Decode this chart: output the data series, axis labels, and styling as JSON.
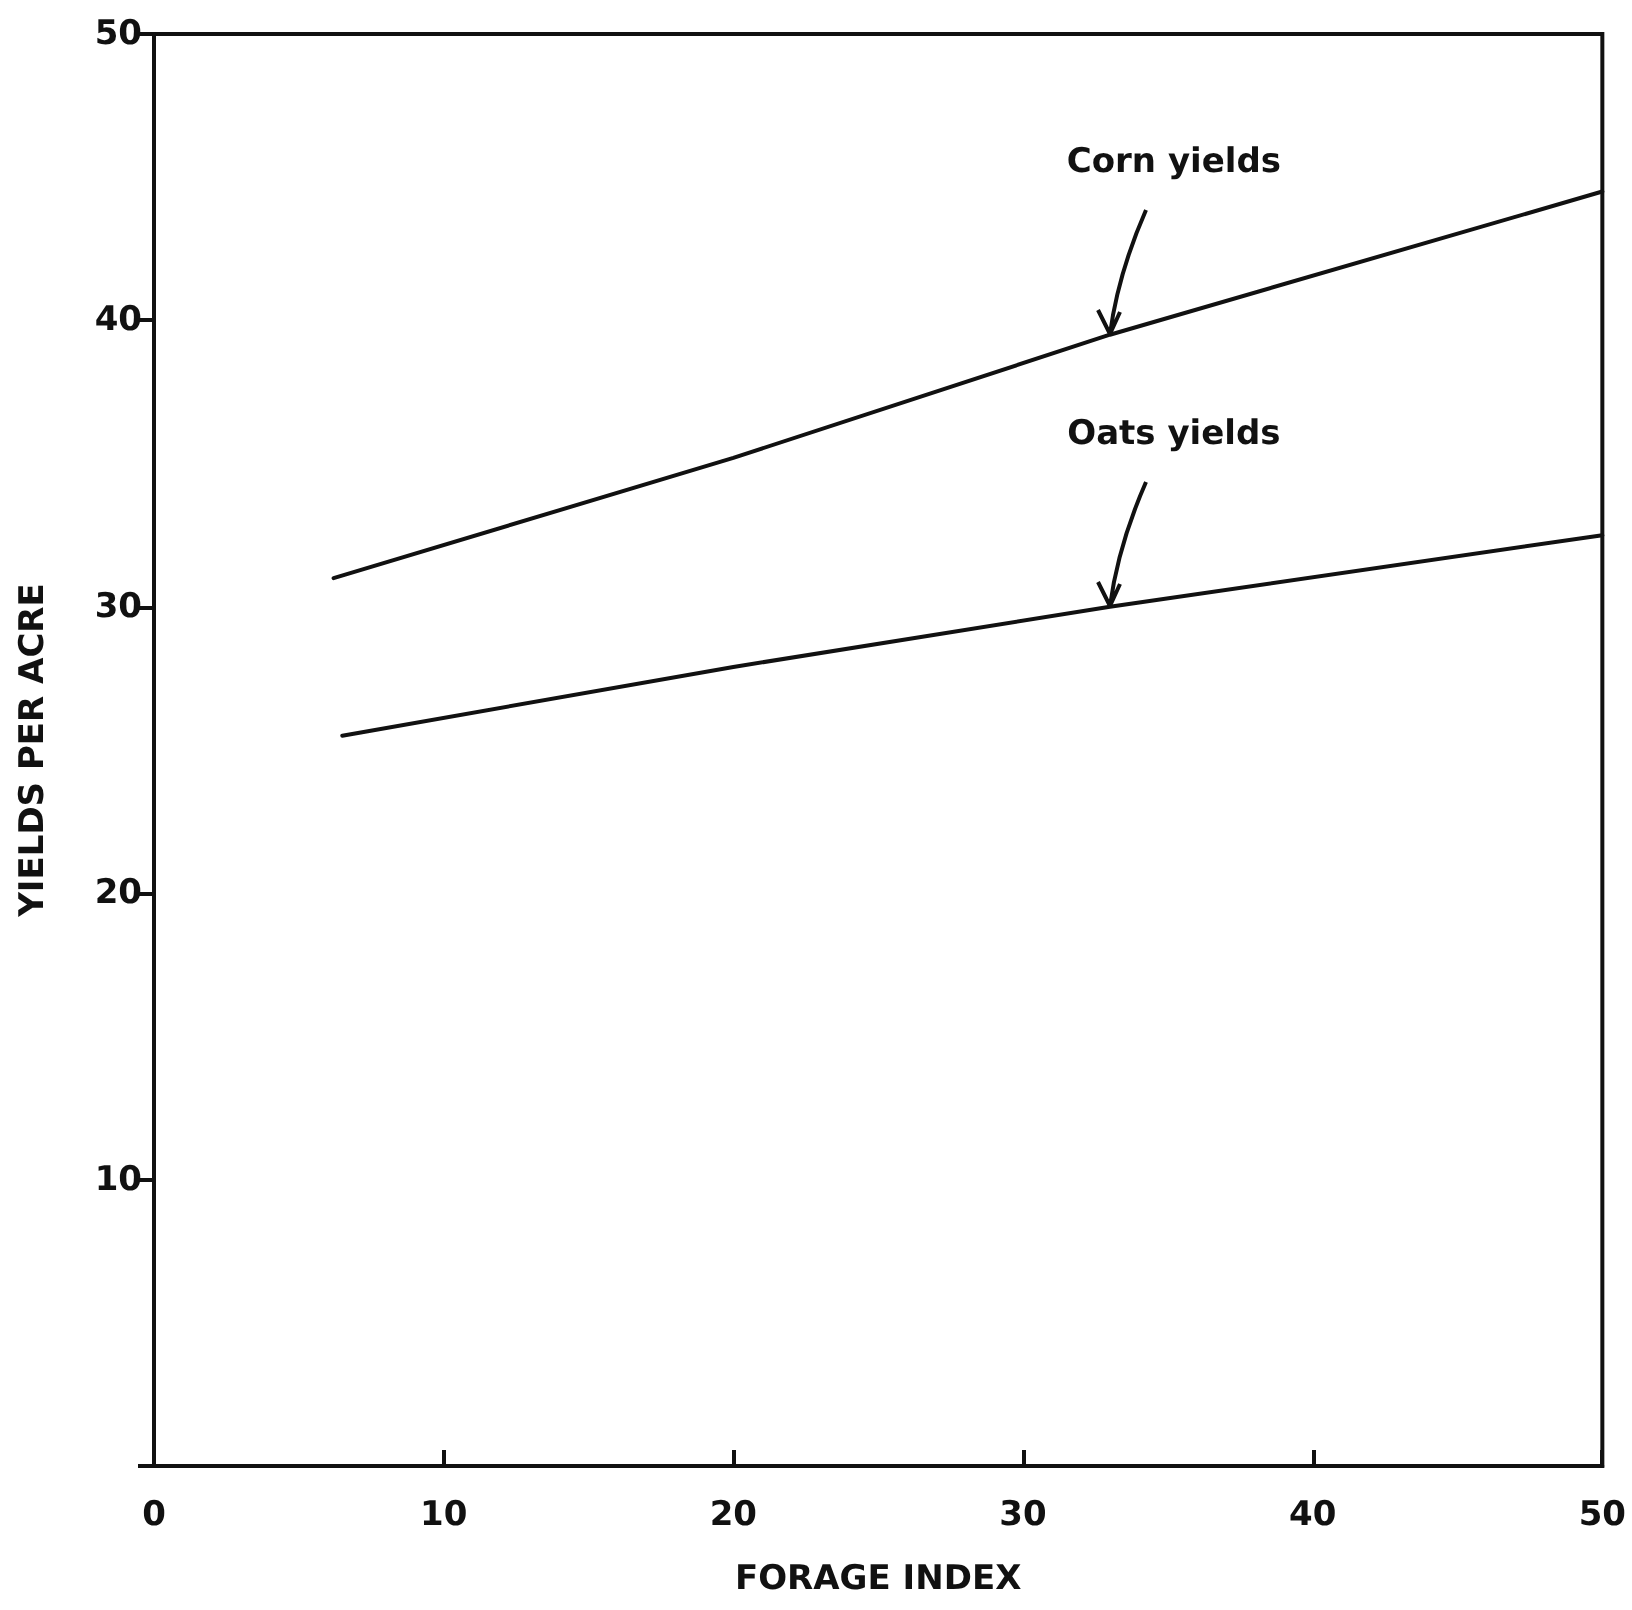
{
  "chart_data": {
    "type": "line",
    "xlabel": "FORAGE INDEX",
    "ylabel": "YIELDS PER ACRE",
    "x": [
      6.2,
      20,
      33,
      50
    ],
    "series": [
      {
        "name": "Corn yields",
        "color": "#111111",
        "values": [
          31.0,
          35.2,
          39.5,
          44.5
        ]
      },
      {
        "name": "Oats yields",
        "color": "#111111",
        "x": [
          6.5,
          20,
          33,
          50
        ],
        "values": [
          25.5,
          27.9,
          30.0,
          32.5
        ]
      }
    ],
    "xlim": [
      0,
      50
    ],
    "xticks": [
      0,
      10,
      20,
      30,
      40,
      50
    ],
    "ylim": [
      0,
      50
    ],
    "yticks": [
      {
        "value": 0,
        "label": null
      },
      10,
      20,
      30,
      40,
      50
    ],
    "grid": false,
    "legend": false,
    "marker": "none",
    "line_style": "solid"
  }
}
